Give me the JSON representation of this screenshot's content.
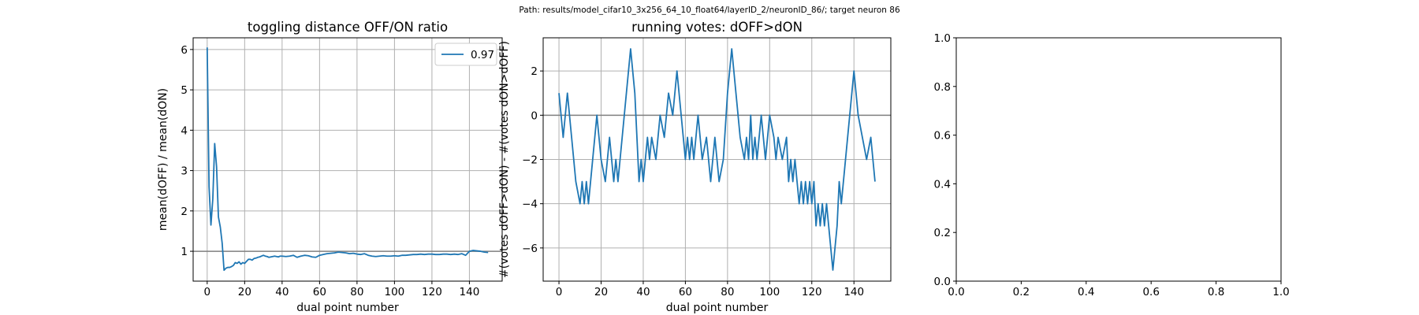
{
  "figure": {
    "suptitle": "Path: results/model_cifar10_3x256_64_10_float64/layerID_2/neuronID_86/; target neuron 86"
  },
  "colors": {
    "line": "#1f77b4",
    "grid": "#b0b0b0",
    "ref": "#808080"
  },
  "chart_data": [
    {
      "type": "line",
      "title": "toggling distance OFF/ON ratio",
      "xlabel": "dual point number",
      "ylabel": "mean(dOFF) / mean(dON)",
      "xlim": [
        -7.5,
        157.5
      ],
      "ylim": [
        0.26,
        6.29
      ],
      "xticks": [
        0,
        20,
        40,
        60,
        80,
        100,
        120,
        140
      ],
      "yticks": [
        1,
        2,
        3,
        4,
        5,
        6
      ],
      "grid": true,
      "hline": 1,
      "legend": {
        "position": "top-right",
        "entries": [
          "0.97"
        ]
      },
      "series": [
        {
          "name": "0.97",
          "x": [
            0,
            1,
            2,
            3,
            4,
            5,
            6,
            7,
            8,
            9,
            10,
            11,
            12,
            13,
            14,
            15,
            16,
            17,
            18,
            19,
            20,
            21,
            22,
            23,
            24,
            25,
            26,
            27,
            28,
            29,
            30,
            31,
            32,
            33,
            34,
            35,
            36,
            37,
            38,
            39,
            40,
            42,
            44,
            46,
            48,
            50,
            52,
            54,
            56,
            58,
            60,
            62,
            64,
            66,
            68,
            70,
            72,
            74,
            76,
            78,
            80,
            82,
            84,
            86,
            88,
            90,
            92,
            94,
            96,
            98,
            100,
            102,
            104,
            106,
            108,
            110,
            112,
            114,
            116,
            118,
            120,
            122,
            124,
            126,
            128,
            130,
            132,
            134,
            136,
            138,
            140,
            142,
            144,
            146,
            148,
            150
          ],
          "values": [
            6.05,
            2.6,
            1.65,
            2.3,
            3.67,
            3.1,
            1.85,
            1.6,
            1.2,
            0.53,
            0.58,
            0.6,
            0.6,
            0.62,
            0.65,
            0.72,
            0.7,
            0.74,
            0.68,
            0.72,
            0.7,
            0.75,
            0.8,
            0.8,
            0.78,
            0.82,
            0.83,
            0.85,
            0.86,
            0.88,
            0.9,
            0.88,
            0.87,
            0.85,
            0.86,
            0.87,
            0.88,
            0.87,
            0.86,
            0.88,
            0.88,
            0.87,
            0.88,
            0.9,
            0.85,
            0.88,
            0.9,
            0.89,
            0.86,
            0.85,
            0.9,
            0.92,
            0.94,
            0.95,
            0.96,
            0.98,
            0.97,
            0.96,
            0.94,
            0.95,
            0.93,
            0.92,
            0.94,
            0.9,
            0.88,
            0.87,
            0.88,
            0.89,
            0.88,
            0.88,
            0.89,
            0.88,
            0.9,
            0.9,
            0.91,
            0.92,
            0.92,
            0.93,
            0.92,
            0.93,
            0.93,
            0.92,
            0.92,
            0.93,
            0.93,
            0.92,
            0.93,
            0.92,
            0.94,
            0.9,
            1.0,
            1.02,
            1.01,
            1.0,
            0.98,
            0.97
          ]
        }
      ]
    },
    {
      "type": "line",
      "title": "running votes: dOFF>dON",
      "xlabel": "dual point number",
      "ylabel": "#(votes dOFF>dON) - #(votes dON>dOFF)",
      "xlim": [
        -7.5,
        157.5
      ],
      "ylim": [
        -7.5,
        3.5
      ],
      "xticks": [
        0,
        20,
        40,
        60,
        80,
        100,
        120,
        140
      ],
      "yticks": [
        -6,
        -4,
        -2,
        0,
        2
      ],
      "grid": true,
      "hline": 0,
      "series": [
        {
          "x": [
            0,
            2,
            4,
            6,
            8,
            10,
            11,
            12,
            13,
            14,
            16,
            18,
            20,
            22,
            24,
            26,
            27,
            28,
            30,
            32,
            34,
            36,
            37,
            38,
            39,
            40,
            42,
            43,
            44,
            46,
            48,
            50,
            52,
            54,
            56,
            58,
            59,
            60,
            61,
            62,
            63,
            64,
            66,
            68,
            70,
            72,
            74,
            76,
            78,
            80,
            82,
            84,
            86,
            88,
            89,
            90,
            91,
            92,
            93,
            94,
            96,
            98,
            100,
            102,
            103,
            104,
            106,
            108,
            109,
            110,
            111,
            112,
            113,
            114,
            115,
            116,
            117,
            118,
            119,
            120,
            121,
            122,
            123,
            124,
            125,
            126,
            127,
            128,
            130,
            132,
            133,
            134,
            136,
            138,
            140,
            142,
            144,
            146,
            148,
            150
          ],
          "values": [
            1,
            -1,
            1,
            -1,
            -3,
            -4,
            -3,
            -4,
            -3,
            -4,
            -2,
            0,
            -2,
            -3,
            -1,
            -3,
            -2,
            -3,
            -1,
            1,
            3,
            1,
            -1,
            -3,
            -2,
            -3,
            -1,
            -2,
            -1,
            -2,
            0,
            -1,
            1,
            0,
            2,
            0,
            -1,
            -2,
            -1,
            -2,
            -1,
            -2,
            0,
            -2,
            -1,
            -3,
            -1,
            -3,
            -2,
            1,
            3,
            1,
            -1,
            -2,
            -1,
            -2,
            0,
            -2,
            -1,
            -2,
            0,
            -2,
            0,
            -1,
            -2,
            -1,
            -2,
            -1,
            -3,
            -2,
            -3,
            -2,
            -3,
            -4,
            -3,
            -4,
            -3,
            -4,
            -3,
            -4,
            -3,
            -5,
            -4,
            -5,
            -4,
            -5,
            -4,
            -5,
            -7,
            -5,
            -3,
            -4,
            -2,
            0,
            2,
            0,
            -1,
            -2,
            -1,
            -3
          ]
        }
      ]
    },
    {
      "type": "line",
      "title": "",
      "xlabel": "",
      "ylabel": "",
      "xlim": [
        0,
        1
      ],
      "ylim": [
        0,
        1
      ],
      "xticks": [
        "0.0",
        "0.2",
        "0.4",
        "0.6",
        "0.8",
        "1.0"
      ],
      "yticks": [
        "0.0",
        "0.2",
        "0.4",
        "0.6",
        "0.8",
        "1.0"
      ],
      "grid": false,
      "series": []
    }
  ]
}
